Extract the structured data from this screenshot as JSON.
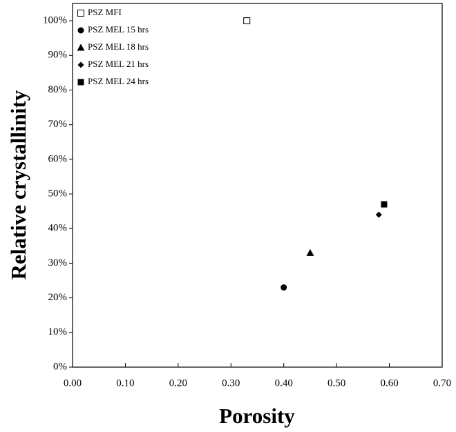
{
  "chart_data": {
    "type": "scatter",
    "xlabel": "Porosity",
    "ylabel": "Relative crystallinity",
    "xlim": [
      0,
      0.7
    ],
    "ylim": [
      0,
      105
    ],
    "xticks": [
      {
        "value": 0,
        "label": "0.00"
      },
      {
        "value": 0.1,
        "label": "0.10"
      },
      {
        "value": 0.2,
        "label": "0.20"
      },
      {
        "value": 0.3,
        "label": "0.30"
      },
      {
        "value": 0.4,
        "label": "0.40"
      },
      {
        "value": 0.5,
        "label": "0.50"
      },
      {
        "value": 0.6,
        "label": "0.60"
      },
      {
        "value": 0.7,
        "label": "0.70"
      }
    ],
    "yticks": [
      {
        "value": 0,
        "label": "0%"
      },
      {
        "value": 10,
        "label": "10%"
      },
      {
        "value": 20,
        "label": "20%"
      },
      {
        "value": 30,
        "label": "30%"
      },
      {
        "value": 40,
        "label": "40%"
      },
      {
        "value": 50,
        "label": "50%"
      },
      {
        "value": 60,
        "label": "60%"
      },
      {
        "value": 70,
        "label": "70%"
      },
      {
        "value": 80,
        "label": "80%"
      },
      {
        "value": 90,
        "label": "90%"
      },
      {
        "value": 100,
        "label": "100%"
      }
    ],
    "legend": "upper left",
    "series": [
      {
        "name": "PSZ MFI",
        "marker": "open-square",
        "color": "#000000",
        "x": [
          0.33
        ],
        "values": [
          100
        ]
      },
      {
        "name": "PSZ MEL 15 hrs",
        "marker": "circle",
        "color": "#000000",
        "x": [
          0.4
        ],
        "values": [
          23
        ]
      },
      {
        "name": "PSZ MEL 18 hrs",
        "marker": "triangle",
        "color": "#000000",
        "x": [
          0.45
        ],
        "values": [
          33
        ]
      },
      {
        "name": "PSZ MEL 21 hrs",
        "marker": "diamond",
        "color": "#000000",
        "x": [
          0.58
        ],
        "values": [
          44
        ]
      },
      {
        "name": "PSZ MEL 24 hrs",
        "marker": "square",
        "color": "#000000",
        "x": [
          0.59
        ],
        "values": [
          47
        ]
      }
    ]
  }
}
